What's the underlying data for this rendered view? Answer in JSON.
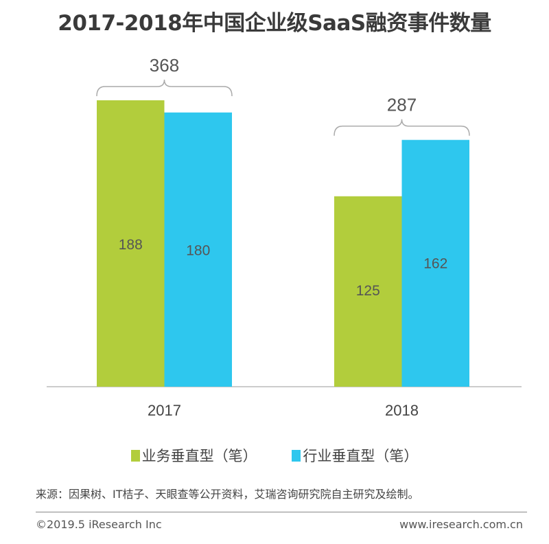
{
  "chart_data": {
    "type": "bar",
    "title": "2017-2018年中国企业级SaaS融资事件数量",
    "categories": [
      "2017",
      "2018"
    ],
    "series": [
      {
        "name": "业务垂直型（笔）",
        "values": [
          188,
          125
        ],
        "color": "#b2cd3c"
      },
      {
        "name": "行业垂直型（笔）",
        "values": [
          180,
          162
        ],
        "color": "#2ec7ee"
      }
    ],
    "totals": [
      "368",
      "287"
    ],
    "data_labels": [
      [
        "188",
        "125"
      ],
      [
        "180",
        "162"
      ]
    ],
    "xlabel": "",
    "ylabel": "",
    "ylim": [
      0,
      190
    ],
    "grid": false,
    "legend": "bottom"
  },
  "source": "来源：因果树、IT桔子、天眼查等公开资料，艾瑞咨询研究院自主研究及绘制。",
  "footer": {
    "copyright": "©2019.5 iResearch Inc",
    "website": "www.iresearch.com.cn"
  }
}
